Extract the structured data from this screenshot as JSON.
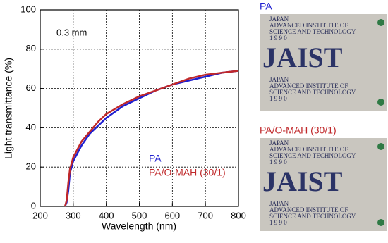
{
  "chart_data": {
    "type": "line",
    "x_label": "Wavelength (nm)",
    "y_label": "Light transmittance (%)",
    "annotation": "0.3 mm",
    "x": [
      275,
      280,
      285,
      290,
      300,
      325,
      350,
      375,
      400,
      450,
      500,
      550,
      600,
      650,
      700,
      750,
      800
    ],
    "series": [
      {
        "name": "PA",
        "color": "#1f1fd0",
        "values": [
          0,
          2,
          8,
          17,
          23,
          31,
          37,
          41,
          45,
          51,
          55,
          59,
          62,
          64,
          66,
          68,
          69
        ]
      },
      {
        "name": "PA/O-MAH (30/1)",
        "color": "#c0282a",
        "values": [
          0,
          3,
          12,
          19,
          25,
          33,
          38,
          43,
          47,
          52,
          56,
          59,
          62,
          65,
          67,
          68,
          69
        ]
      }
    ],
    "xlim": [
      200,
      800
    ],
    "xticks": [
      200,
      300,
      400,
      500,
      600,
      700,
      800
    ],
    "ylim": [
      0,
      100
    ],
    "yticks": [
      0,
      20,
      40,
      60,
      80,
      100
    ],
    "grid": true
  },
  "photos": [
    {
      "label": "PA",
      "label_color": "#1f1fd0"
    },
    {
      "label": "PA/O-MAH (30/1)",
      "label_color": "#c0282a"
    }
  ],
  "photo_text": {
    "lines": [
      "JAPAN",
      "ADVANCED INSTITUTE OF",
      "SCIENCE AND TECHNOLOGY",
      "1 9 9 0"
    ],
    "logo": "JAIST"
  }
}
